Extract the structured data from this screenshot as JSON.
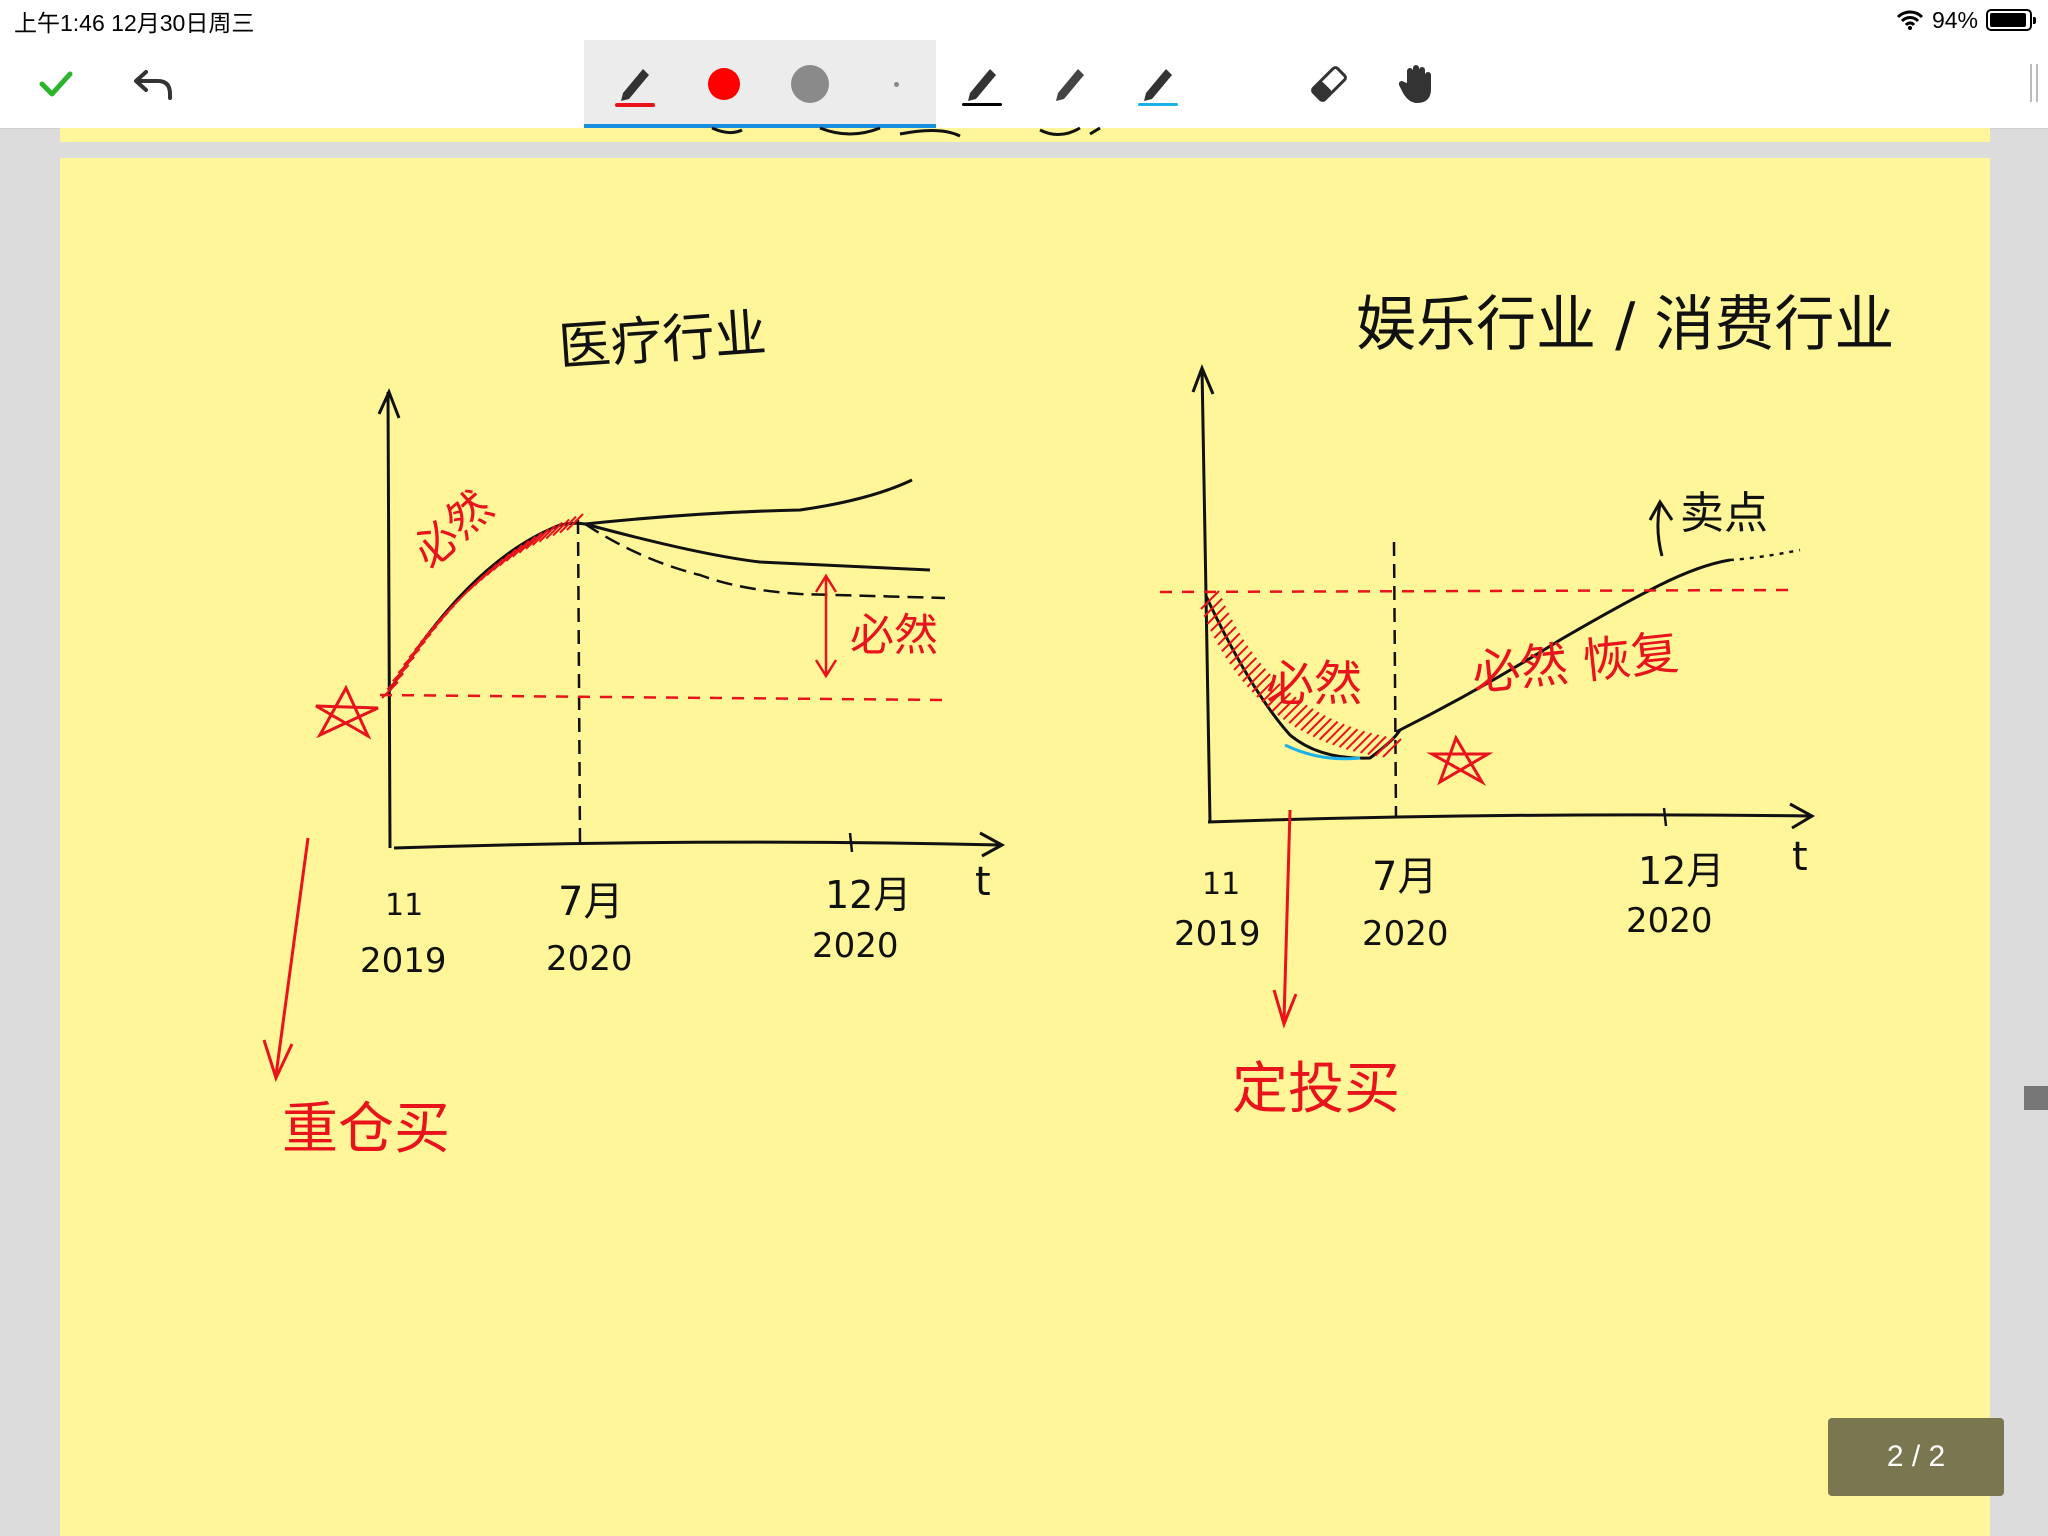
{
  "status_bar": {
    "time": "上午1:46   12月30日周三",
    "battery": "94%"
  },
  "toolbar": {
    "icons": [
      "check-icon",
      "undo-icon",
      "pen-icon",
      "red-color-dot",
      "gray-color-dot",
      "small-dot",
      "pen-black-icon",
      "pen-white-icon",
      "pen-cyan-icon",
      "eraser-icon",
      "hand-icon"
    ],
    "colors": {
      "active_pen": "#e8131b",
      "red": "#ff0000",
      "gray": "#8a8a8a",
      "black": "#000000",
      "white": "#ffffff",
      "cyan": "#1ab0e8",
      "check": "#2bb52b"
    }
  },
  "page": {
    "background": "#fff599",
    "indicator": "2 / 2"
  },
  "note": {
    "left": {
      "title": "医疗行业",
      "annot_top": "必然",
      "annot_right": "必然",
      "x_labels": [
        {
          "top": "11",
          "bottom": "2019"
        },
        {
          "top": "7月",
          "bottom": "2020"
        },
        {
          "top": "12月",
          "bottom": "2020"
        }
      ],
      "axis_t": "t",
      "action": "重仓买"
    },
    "right": {
      "title": "娱乐行业 / 消费行业",
      "annot_down": "必然",
      "annot_up": "必然 恢复",
      "sell": "卖点",
      "x_labels": [
        {
          "top": "11",
          "bottom": "2019"
        },
        {
          "top": "7月",
          "bottom": "2020"
        },
        {
          "top": "12月",
          "bottom": "2020"
        }
      ],
      "axis_t": "t",
      "action": "定投买"
    }
  }
}
